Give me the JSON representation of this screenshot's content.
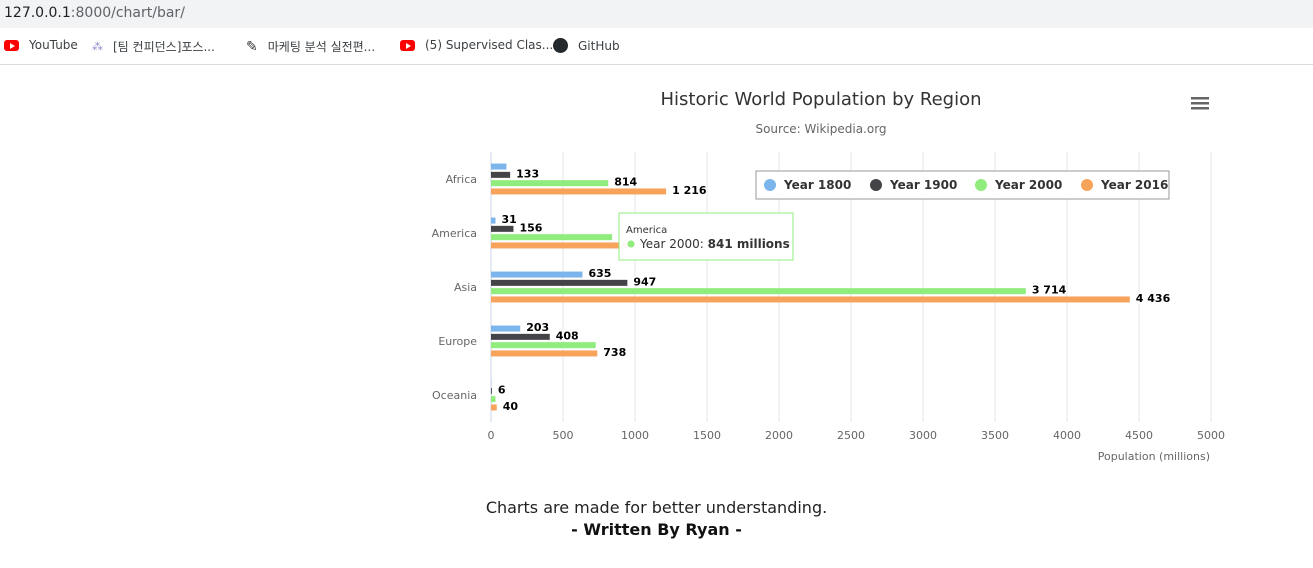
{
  "browser": {
    "url_host": "127.0.0.1",
    "url_rest": ":8000/chart/bar/",
    "bookmarks": [
      {
        "label": "YouTube",
        "icon": "youtube-icon"
      },
      {
        "label": "[팀 컨피던스]포스...",
        "icon": "dots-icon"
      },
      {
        "label": "마케팅 분석 실전편...",
        "icon": "pen-icon"
      },
      {
        "label": "(5) Supervised Clas...",
        "icon": "youtube-icon"
      },
      {
        "label": "GitHub",
        "icon": "github-icon"
      }
    ]
  },
  "chart_data": {
    "type": "bar",
    "orientation": "horizontal",
    "title": "Historic World Population by Region",
    "subtitle": "Source: Wikipedia.org",
    "xlabel": "Population (millions)",
    "categories": [
      "Africa",
      "America",
      "Asia",
      "Europe",
      "Oceania"
    ],
    "series": [
      {
        "name": "Year 1800",
        "color": "#7cb5ec",
        "values": [
          107,
          31,
          635,
          203,
          2
        ]
      },
      {
        "name": "Year 1900",
        "color": "#434348",
        "values": [
          133,
          156,
          947,
          408,
          6
        ]
      },
      {
        "name": "Year 2000",
        "color": "#90ed7d",
        "values": [
          814,
          841,
          3714,
          727,
          31
        ]
      },
      {
        "name": "Year 2016",
        "color": "#f7a35c",
        "values": [
          1216,
          1001,
          4436,
          738,
          40
        ]
      }
    ],
    "data_labels": [
      [
        "",
        "133",
        "814",
        "1 216"
      ],
      [
        "31",
        "156",
        "",
        ""
      ],
      [
        "635",
        "947",
        "3 714",
        "4 436"
      ],
      [
        "203",
        "408",
        "",
        "738"
      ],
      [
        "",
        "6",
        "",
        "40"
      ]
    ],
    "x_ticks": [
      "0",
      "500",
      "1000",
      "1500",
      "2000",
      "2500",
      "3000",
      "3500",
      "4000",
      "4500",
      "5000"
    ],
    "xlim": [
      0,
      5000
    ],
    "grid": true,
    "legend_position": "top-right",
    "tooltip": {
      "category": "America",
      "series": "Year 2000",
      "value": "841 millions"
    }
  },
  "footer": {
    "line1": "Charts are made for better understanding.",
    "line2": "- Written By Ryan -"
  }
}
